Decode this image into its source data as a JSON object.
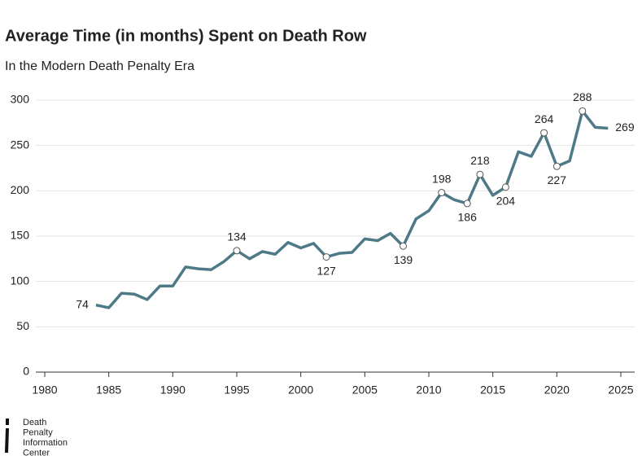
{
  "chart_data": {
    "type": "line",
    "title": "Average Time (in months) Spent on Death Row",
    "subtitle": "In the Modern Death Penalty Era",
    "x": [
      1984,
      1985,
      1986,
      1987,
      1988,
      1989,
      1990,
      1991,
      1992,
      1993,
      1994,
      1995,
      1996,
      1997,
      1998,
      1999,
      2000,
      2001,
      2002,
      2003,
      2004,
      2005,
      2006,
      2007,
      2008,
      2009,
      2010,
      2011,
      2012,
      2013,
      2014,
      2015,
      2016,
      2017,
      2018,
      2019,
      2020,
      2021,
      2022,
      2023,
      2024
    ],
    "series": [
      {
        "color": "#4e7987",
        "values": [
          74,
          71,
          87,
          86,
          80,
          95,
          95,
          116,
          114,
          113,
          122,
          134,
          125,
          133,
          130,
          143,
          137,
          142,
          127,
          131,
          132,
          147,
          145,
          153,
          139,
          169,
          178,
          198,
          190,
          186,
          218,
          195,
          204,
          243,
          238,
          264,
          227,
          233,
          288,
          270,
          269
        ],
        "value_labels": [
          "74",
          null,
          null,
          null,
          null,
          null,
          null,
          null,
          null,
          null,
          null,
          "134",
          null,
          null,
          null,
          null,
          null,
          null,
          "127",
          null,
          null,
          null,
          null,
          null,
          "139",
          null,
          null,
          "198",
          null,
          "186",
          "218",
          null,
          "204",
          null,
          null,
          "264",
          "227",
          null,
          "288",
          null,
          "269"
        ]
      }
    ],
    "xlim": [
      1980,
      2025
    ],
    "xticks": [
      1980,
      1985,
      1990,
      1995,
      2000,
      2005,
      2010,
      2015,
      2020,
      2025
    ],
    "ylim": [
      0,
      300
    ],
    "yticks": [
      0,
      50,
      100,
      150,
      200,
      250,
      300
    ],
    "grid": true,
    "footer": [
      "Death",
      "Penalty",
      "Information",
      "Center"
    ]
  }
}
